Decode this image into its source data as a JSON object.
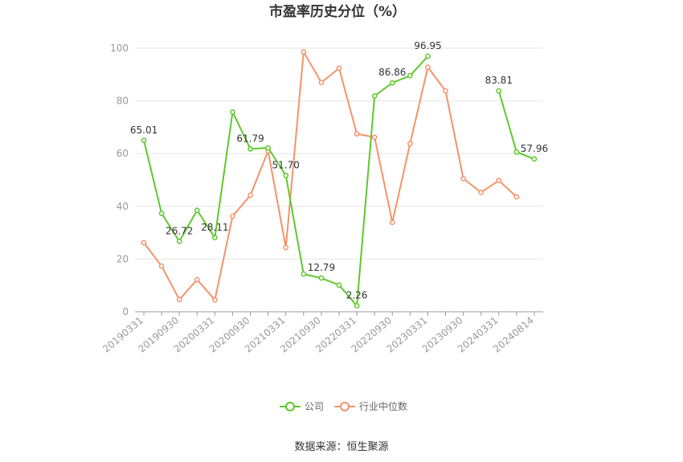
{
  "chart_data": {
    "type": "line",
    "title": "市盈率历史分位（%）",
    "xlabel": "",
    "ylabel": "",
    "ylim": [
      0,
      100
    ],
    "yticks": [
      0,
      20,
      40,
      60,
      80,
      100
    ],
    "grid": true,
    "legend_position": "bottom",
    "x": [
      "20190331",
      "20190630",
      "20190930",
      "20191231",
      "20200331",
      "20200630",
      "20200930",
      "20201231",
      "20210331",
      "20210630",
      "20210930",
      "20211231",
      "20220331",
      "20220630",
      "20220930",
      "20221231",
      "20230331",
      "20230630",
      "20230930",
      "20231231",
      "20240331",
      "20240630",
      "20240814"
    ],
    "x_tick_labels": [
      "20190331",
      "20190930",
      "20200331",
      "20200930",
      "20210331",
      "20210930",
      "20220331",
      "20220930",
      "20230331",
      "20230930",
      "20240331",
      "20240814"
    ],
    "series": [
      {
        "name": "公司",
        "color": "#5fc82c",
        "values": [
          65.01,
          37.3,
          26.72,
          38.5,
          28.11,
          75.8,
          61.79,
          62.2,
          51.7,
          14.3,
          12.79,
          10.1,
          2.26,
          81.9,
          86.86,
          89.6,
          96.95,
          null,
          null,
          null,
          83.81,
          60.6,
          57.96
        ],
        "labeled": [
          {
            "index": 0,
            "text": "65.01"
          },
          {
            "index": 2,
            "text": "26.72"
          },
          {
            "index": 4,
            "text": "28.11"
          },
          {
            "index": 6,
            "text": "61.79"
          },
          {
            "index": 8,
            "text": "51.70"
          },
          {
            "index": 10,
            "text": "12.79"
          },
          {
            "index": 12,
            "text": "2.26"
          },
          {
            "index": 14,
            "text": "86.86"
          },
          {
            "index": 16,
            "text": "96.95"
          },
          {
            "index": 20,
            "text": "83.81"
          },
          {
            "index": 22,
            "text": "57.96"
          }
        ]
      },
      {
        "name": "行业中位数",
        "color": "#f4936a",
        "values": [
          26.2,
          17.3,
          4.6,
          12.2,
          4.5,
          36.3,
          44.2,
          61.0,
          24.4,
          98.6,
          87.0,
          92.4,
          67.5,
          66.2,
          33.9,
          63.8,
          92.8,
          83.8,
          50.5,
          45.3,
          49.8,
          43.6,
          null
        ]
      }
    ],
    "source": "数据来源：恒生聚源"
  }
}
